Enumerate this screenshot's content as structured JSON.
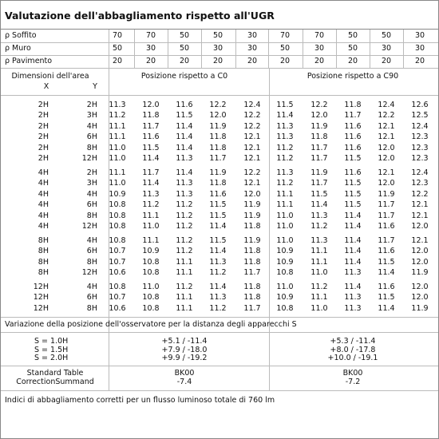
{
  "title": "Valutazione dell'abbagliamento rispetto all'UGR",
  "reflectances": [
    {
      "label": "ρ Soffito",
      "values": [
        70,
        70,
        50,
        50,
        30,
        70,
        70,
        50,
        50,
        30
      ]
    },
    {
      "label": "ρ Muro",
      "values": [
        50,
        30,
        50,
        30,
        30,
        50,
        30,
        50,
        30,
        30
      ]
    },
    {
      "label": "ρ Pavimento",
      "values": [
        20,
        20,
        20,
        20,
        20,
        20,
        20,
        20,
        20,
        20
      ]
    }
  ],
  "header": {
    "area": "Dimensioni dell'area",
    "x": "X",
    "y": "Y",
    "c0": "Posizione rispetto a C0",
    "c90": "Posizione rispetto a C90"
  },
  "groups": [
    {
      "rows": [
        {
          "x": "2H",
          "y": "2H",
          "values": [
            "11.3",
            "12.0",
            "11.6",
            "12.2",
            "12.4",
            "11.5",
            "12.2",
            "11.8",
            "12.4",
            "12.6"
          ]
        },
        {
          "x": "2H",
          "y": "3H",
          "values": [
            "11.2",
            "11.8",
            "11.5",
            "12.0",
            "12.2",
            "11.4",
            "12.0",
            "11.7",
            "12.2",
            "12.5"
          ]
        },
        {
          "x": "2H",
          "y": "4H",
          "values": [
            "11.1",
            "11.7",
            "11.4",
            "11.9",
            "12.2",
            "11.3",
            "11.9",
            "11.6",
            "12.1",
            "12.4"
          ]
        },
        {
          "x": "2H",
          "y": "6H",
          "values": [
            "11.1",
            "11.6",
            "11.4",
            "11.8",
            "12.1",
            "11.3",
            "11.8",
            "11.6",
            "12.1",
            "12.3"
          ]
        },
        {
          "x": "2H",
          "y": "8H",
          "values": [
            "11.0",
            "11.5",
            "11.4",
            "11.8",
            "12.1",
            "11.2",
            "11.7",
            "11.6",
            "12.0",
            "12.3"
          ]
        },
        {
          "x": "2H",
          "y": "12H",
          "values": [
            "11.0",
            "11.4",
            "11.3",
            "11.7",
            "12.1",
            "11.2",
            "11.7",
            "11.5",
            "12.0",
            "12.3"
          ]
        }
      ]
    },
    {
      "rows": [
        {
          "x": "4H",
          "y": "2H",
          "values": [
            "11.1",
            "11.7",
            "11.4",
            "11.9",
            "12.2",
            "11.3",
            "11.9",
            "11.6",
            "12.1",
            "12.4"
          ]
        },
        {
          "x": "4H",
          "y": "3H",
          "values": [
            "11.0",
            "11.4",
            "11.3",
            "11.8",
            "12.1",
            "11.2",
            "11.7",
            "11.5",
            "12.0",
            "12.3"
          ]
        },
        {
          "x": "4H",
          "y": "4H",
          "values": [
            "10.9",
            "11.3",
            "11.3",
            "11.6",
            "12.0",
            "11.1",
            "11.5",
            "11.5",
            "11.9",
            "12.2"
          ]
        },
        {
          "x": "4H",
          "y": "6H",
          "values": [
            "10.8",
            "11.2",
            "11.2",
            "11.5",
            "11.9",
            "11.1",
            "11.4",
            "11.5",
            "11.7",
            "12.1"
          ]
        },
        {
          "x": "4H",
          "y": "8H",
          "values": [
            "10.8",
            "11.1",
            "11.2",
            "11.5",
            "11.9",
            "11.0",
            "11.3",
            "11.4",
            "11.7",
            "12.1"
          ]
        },
        {
          "x": "4H",
          "y": "12H",
          "values": [
            "10.8",
            "11.0",
            "11.2",
            "11.4",
            "11.8",
            "11.0",
            "11.2",
            "11.4",
            "11.6",
            "12.0"
          ]
        }
      ]
    },
    {
      "rows": [
        {
          "x": "8H",
          "y": "4H",
          "values": [
            "10.8",
            "11.1",
            "11.2",
            "11.5",
            "11.9",
            "11.0",
            "11.3",
            "11.4",
            "11.7",
            "12.1"
          ]
        },
        {
          "x": "8H",
          "y": "6H",
          "values": [
            "10.7",
            "10.9",
            "11.2",
            "11.4",
            "11.8",
            "10.9",
            "11.1",
            "11.4",
            "11.6",
            "12.0"
          ]
        },
        {
          "x": "8H",
          "y": "8H",
          "values": [
            "10.7",
            "10.8",
            "11.1",
            "11.3",
            "11.8",
            "10.9",
            "11.1",
            "11.4",
            "11.5",
            "12.0"
          ]
        },
        {
          "x": "8H",
          "y": "12H",
          "values": [
            "10.6",
            "10.8",
            "11.1",
            "11.2",
            "11.7",
            "10.8",
            "11.0",
            "11.3",
            "11.4",
            "11.9"
          ]
        }
      ]
    },
    {
      "rows": [
        {
          "x": "12H",
          "y": "4H",
          "values": [
            "10.8",
            "11.0",
            "11.2",
            "11.4",
            "11.8",
            "11.0",
            "11.2",
            "11.4",
            "11.6",
            "12.0"
          ]
        },
        {
          "x": "12H",
          "y": "6H",
          "values": [
            "10.7",
            "10.8",
            "11.1",
            "11.3",
            "11.8",
            "10.9",
            "11.1",
            "11.3",
            "11.5",
            "12.0"
          ]
        },
        {
          "x": "12H",
          "y": "8H",
          "values": [
            "10.6",
            "10.8",
            "11.1",
            "11.2",
            "11.7",
            "10.8",
            "11.0",
            "11.3",
            "11.4",
            "11.9"
          ]
        }
      ]
    }
  ],
  "variation": {
    "title": "Variazione della posizione dell'osservatore per la distanza degli apparecchi S",
    "rows": [
      {
        "label": "S = 1.0H",
        "c0": "+5.1 / -11.4",
        "c90": "+5.3 / -11.4"
      },
      {
        "label": "S = 1.5H",
        "c0": "+7.9 / -18.0",
        "c90": "+8.0 / -17.8"
      },
      {
        "label": "S = 2.0H",
        "c0": "+9.9 / -19.2",
        "c90": "+10.0 / -19.1"
      }
    ]
  },
  "standard": {
    "labels": [
      "Standard Table",
      "CorrectionSummand"
    ],
    "c0": [
      "BK00",
      "-7.4"
    ],
    "c90": [
      "BK00",
      "-7.2"
    ]
  },
  "footer": "Indici di abbagliamento corretti per un flusso luminoso totale di 760 lm"
}
